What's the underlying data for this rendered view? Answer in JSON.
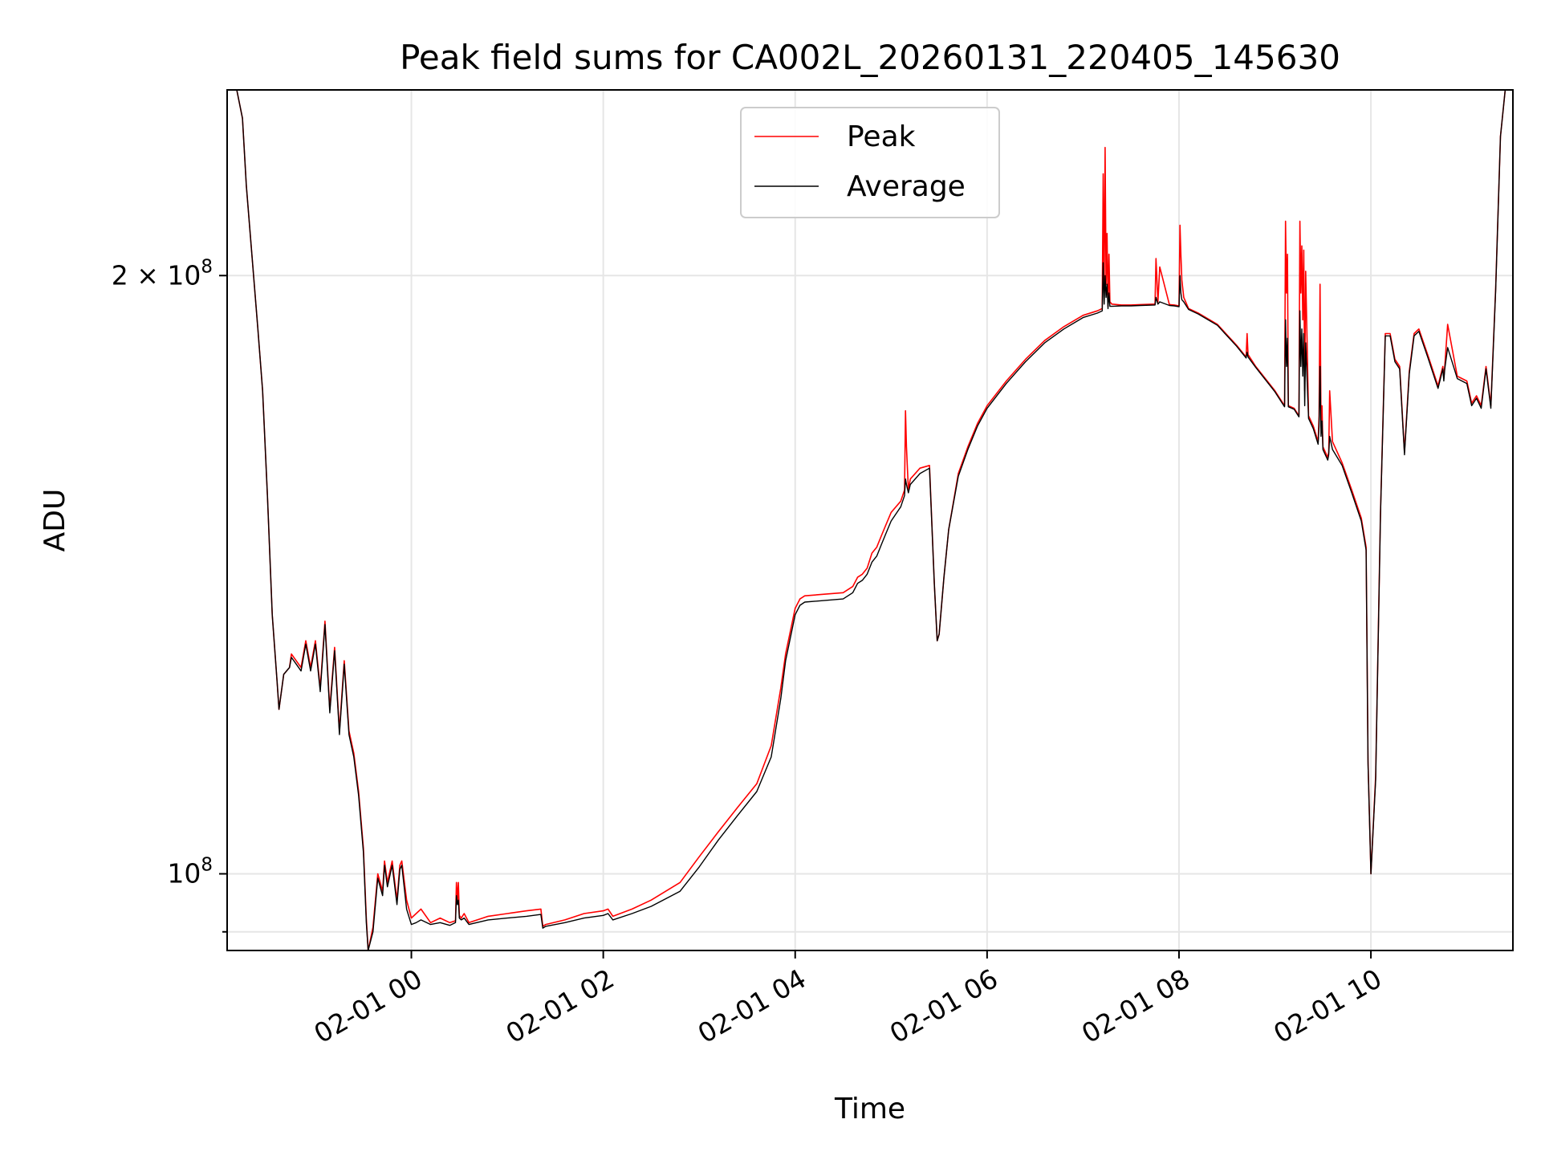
{
  "chart_data": {
    "type": "line",
    "title": "Peak field sums for CA002L_20260131_220405_145630",
    "xlabel": "Time",
    "ylabel": "ADU",
    "x_unit": "hours since 2026-02-01 00:00",
    "xlim": [
      -1.92,
      11.48
    ],
    "yscale": "log",
    "ylim": [
      91500000,
      248000000
    ],
    "xticks": [
      {
        "value": 0,
        "label": "02-01 00"
      },
      {
        "value": 2,
        "label": "02-01 02"
      },
      {
        "value": 4,
        "label": "02-01 04"
      },
      {
        "value": 6,
        "label": "02-01 06"
      },
      {
        "value": 8,
        "label": "02-01 08"
      },
      {
        "value": 10,
        "label": "02-01 10"
      }
    ],
    "yticks_major": [
      {
        "value": 100000000,
        "base": "10",
        "exp": "8",
        "mult": ""
      },
      {
        "value": 200000000,
        "base": "10",
        "exp": "8",
        "mult": "2 × "
      }
    ],
    "yticks_minor": [
      93500000
    ],
    "grid": true,
    "legend_position": "top-center",
    "colors": {
      "peak": "#ff0000",
      "average": "#000000"
    },
    "series": [
      {
        "name": "Peak",
        "color": "#ff0000",
        "x": [
          -1.92,
          -1.82,
          -1.76,
          -1.72,
          -1.6,
          -1.55,
          -1.5,
          -1.45,
          -1.4,
          -1.38,
          -1.33,
          -1.27,
          -1.25,
          -1.2,
          -1.15,
          -1.1,
          -1.05,
          -1.0,
          -0.95,
          -0.9,
          -0.85,
          -0.8,
          -0.75,
          -0.7,
          -0.65,
          -0.6,
          -0.55,
          -0.5,
          -0.47,
          -0.45,
          -0.4,
          -0.35,
          -0.3,
          -0.28,
          -0.25,
          -0.2,
          -0.15,
          -0.12,
          -0.1,
          -0.05,
          0.0,
          0.05,
          0.1,
          0.2,
          0.3,
          0.4,
          0.46,
          0.47,
          0.48,
          0.49,
          0.5,
          0.52,
          0.55,
          0.6,
          0.8,
          1.0,
          1.2,
          1.35,
          1.37,
          1.4,
          1.6,
          1.8,
          2.0,
          2.05,
          2.1,
          2.3,
          2.5,
          2.8,
          3.0,
          3.2,
          3.4,
          3.6,
          3.75,
          3.85,
          3.9,
          4.0,
          4.05,
          4.1,
          4.5,
          4.6,
          4.65,
          4.7,
          4.75,
          4.8,
          4.85,
          4.9,
          4.95,
          5.0,
          5.1,
          5.14,
          5.15,
          5.16,
          5.18,
          5.2,
          5.3,
          5.4,
          5.45,
          5.48,
          5.5,
          5.55,
          5.6,
          5.7,
          5.8,
          5.9,
          6.0,
          6.2,
          6.4,
          6.6,
          6.8,
          7.0,
          7.15,
          7.2,
          7.21,
          7.22,
          7.23,
          7.24,
          7.25,
          7.26,
          7.27,
          7.28,
          7.3,
          7.4,
          7.5,
          7.6,
          7.75,
          7.76,
          7.78,
          7.8,
          7.9,
          7.95,
          8.0,
          8.01,
          8.02,
          8.03,
          8.05,
          8.1,
          8.2,
          8.4,
          8.6,
          8.7,
          8.71,
          8.72,
          8.8,
          9.0,
          9.1,
          9.11,
          9.12,
          9.13,
          9.14,
          9.2,
          9.25,
          9.26,
          9.27,
          9.28,
          9.29,
          9.3,
          9.31,
          9.32,
          9.35,
          9.4,
          9.45,
          9.46,
          9.47,
          9.48,
          9.49,
          9.5,
          9.55,
          9.56,
          9.57,
          9.6,
          9.7,
          9.8,
          9.9,
          9.95,
          9.97,
          10.0,
          10.05,
          10.1,
          10.15,
          10.2,
          10.25,
          10.3,
          10.35,
          10.4,
          10.45,
          10.5,
          10.6,
          10.7,
          10.75,
          10.76,
          10.77,
          10.8,
          10.9,
          11.0,
          11.05,
          11.1,
          11.15,
          11.2,
          11.25,
          11.3,
          11.35,
          11.4,
          11.48
        ],
        "y": [
          248000000,
          248000000,
          240000000,
          222000000,
          188000000,
          175000000,
          155000000,
          135000000,
          125000000,
          121000000,
          126000000,
          127000000,
          129000000,
          128000000,
          127000000,
          131000000,
          127000000,
          131000000,
          124000000,
          134000000,
          121000000,
          130000000,
          118000000,
          128000000,
          118000000,
          115000000,
          110000000,
          103000000,
          95000000,
          91500000,
          94000000,
          100000000,
          98000000,
          101500000,
          99000000,
          101500000,
          97000000,
          101000000,
          101500000,
          97000000,
          95000000,
          95500000,
          96000000,
          94500000,
          95000000,
          94500000,
          94700000,
          99000000,
          97000000,
          99000000,
          95300000,
          95000000,
          95500000,
          94500000,
          95200000,
          95500000,
          95800000,
          96000000,
          94100000,
          94300000,
          94800000,
          95500000,
          95800000,
          96000000,
          95200000,
          96000000,
          97000000,
          99000000,
          102000000,
          105000000,
          108000000,
          111000000,
          116000000,
          124000000,
          129000000,
          136000000,
          137500000,
          138000000,
          138500000,
          139500000,
          141000000,
          141500000,
          142500000,
          145000000,
          146000000,
          148000000,
          150000000,
          152000000,
          154000000,
          156000000,
          171000000,
          164000000,
          156000000,
          158000000,
          160000000,
          160500000,
          140000000,
          131000000,
          132000000,
          141000000,
          149000000,
          159000000,
          164000000,
          168500000,
          172000000,
          177000000,
          181500000,
          185500000,
          188500000,
          191000000,
          192000000,
          192500000,
          225000000,
          196000000,
          232000000,
          198000000,
          210000000,
          193000000,
          205000000,
          194000000,
          193500000,
          193300000,
          193300000,
          193400000,
          193500000,
          204000000,
          194000000,
          202000000,
          193400000,
          193300000,
          193100000,
          212000000,
          205000000,
          199000000,
          195000000,
          192500000,
          191500000,
          189000000,
          184500000,
          182000000,
          187000000,
          182500000,
          180000000,
          175000000,
          172000000,
          213000000,
          196000000,
          205000000,
          172000000,
          171500000,
          170000000,
          213000000,
          196000000,
          207000000,
          190000000,
          206000000,
          175000000,
          201000000,
          170000000,
          168000000,
          165000000,
          170000000,
          198000000,
          168000000,
          172000000,
          164000000,
          162000000,
          163000000,
          175000000,
          165000000,
          161000000,
          156000000,
          151000000,
          146000000,
          114000000,
          100000000,
          112000000,
          152000000,
          187000000,
          187000000,
          181500000,
          180000000,
          163000000,
          179000000,
          187000000,
          188000000,
          182000000,
          176000000,
          180000000,
          177500000,
          180000000,
          189000000,
          178000000,
          177000000,
          172500000,
          174000000,
          172000000,
          180000000,
          172000000,
          197000000,
          235000000,
          248000000,
          248000000
        ]
      },
      {
        "name": "Average",
        "color": "#000000",
        "x": [
          -1.92,
          -1.82,
          -1.76,
          -1.72,
          -1.6,
          -1.55,
          -1.5,
          -1.45,
          -1.4,
          -1.38,
          -1.33,
          -1.27,
          -1.25,
          -1.2,
          -1.15,
          -1.1,
          -1.05,
          -1.0,
          -0.95,
          -0.9,
          -0.85,
          -0.8,
          -0.75,
          -0.7,
          -0.65,
          -0.6,
          -0.55,
          -0.5,
          -0.47,
          -0.45,
          -0.4,
          -0.35,
          -0.3,
          -0.28,
          -0.25,
          -0.2,
          -0.15,
          -0.12,
          -0.1,
          -0.05,
          0.0,
          0.05,
          0.1,
          0.2,
          0.3,
          0.4,
          0.46,
          0.47,
          0.48,
          0.49,
          0.5,
          0.52,
          0.55,
          0.6,
          0.8,
          1.0,
          1.2,
          1.35,
          1.37,
          1.4,
          1.6,
          1.8,
          2.0,
          2.05,
          2.1,
          2.3,
          2.5,
          2.8,
          3.0,
          3.2,
          3.4,
          3.6,
          3.75,
          3.85,
          3.9,
          4.0,
          4.05,
          4.1,
          4.5,
          4.6,
          4.65,
          4.7,
          4.75,
          4.8,
          4.85,
          4.9,
          4.95,
          5.0,
          5.1,
          5.14,
          5.15,
          5.16,
          5.18,
          5.2,
          5.3,
          5.4,
          5.45,
          5.48,
          5.5,
          5.55,
          5.6,
          5.7,
          5.8,
          5.9,
          6.0,
          6.2,
          6.4,
          6.6,
          6.8,
          7.0,
          7.15,
          7.2,
          7.21,
          7.22,
          7.23,
          7.24,
          7.25,
          7.26,
          7.27,
          7.28,
          7.3,
          7.4,
          7.5,
          7.6,
          7.75,
          7.76,
          7.78,
          7.8,
          7.9,
          7.95,
          8.0,
          8.01,
          8.02,
          8.03,
          8.05,
          8.1,
          8.2,
          8.4,
          8.6,
          8.7,
          8.71,
          8.72,
          8.8,
          9.0,
          9.1,
          9.11,
          9.12,
          9.13,
          9.14,
          9.2,
          9.25,
          9.26,
          9.27,
          9.28,
          9.29,
          9.3,
          9.31,
          9.32,
          9.35,
          9.4,
          9.45,
          9.46,
          9.47,
          9.48,
          9.49,
          9.5,
          9.55,
          9.56,
          9.57,
          9.6,
          9.7,
          9.8,
          9.9,
          9.95,
          9.97,
          10.0,
          10.05,
          10.1,
          10.15,
          10.2,
          10.25,
          10.3,
          10.35,
          10.4,
          10.45,
          10.5,
          10.6,
          10.7,
          10.75,
          10.76,
          10.77,
          10.8,
          10.9,
          11.0,
          11.05,
          11.1,
          11.15,
          11.2,
          11.25,
          11.3,
          11.35,
          11.4,
          11.48
        ],
        "y": [
          248000000,
          248000000,
          240000000,
          222000000,
          188000000,
          175000000,
          155000000,
          135000000,
          125000000,
          121000000,
          126000000,
          127000000,
          128500000,
          127500000,
          126500000,
          130500000,
          126500000,
          130500000,
          123500000,
          133500000,
          120500000,
          129500000,
          117500000,
          127500000,
          117500000,
          114500000,
          109500000,
          102500000,
          94500000,
          91500000,
          93500000,
          99500000,
          97500000,
          101000000,
          98500000,
          101000000,
          96500000,
          100500000,
          101000000,
          96000000,
          94300000,
          94500000,
          94800000,
          94300000,
          94500000,
          94200000,
          94500000,
          97500000,
          96500000,
          97000000,
          95000000,
          94800000,
          95000000,
          94300000,
          94800000,
          95000000,
          95200000,
          95400000,
          93900000,
          94100000,
          94500000,
          95000000,
          95300000,
          95500000,
          94800000,
          95500000,
          96300000,
          98000000,
          100800000,
          104000000,
          107000000,
          110000000,
          114500000,
          122500000,
          128000000,
          135000000,
          136500000,
          137000000,
          137500000,
          138500000,
          140000000,
          140500000,
          141500000,
          143500000,
          144500000,
          146500000,
          148500000,
          150500000,
          153000000,
          155000000,
          158000000,
          157000000,
          155500000,
          157000000,
          159000000,
          160000000,
          140000000,
          131000000,
          132000000,
          141000000,
          149000000,
          158500000,
          163500000,
          168000000,
          171500000,
          176500000,
          181000000,
          185000000,
          188000000,
          190500000,
          191500000,
          192000000,
          203000000,
          193500000,
          200000000,
          195000000,
          198000000,
          192500000,
          196000000,
          193000000,
          193000000,
          193100000,
          193100000,
          193200000,
          193300000,
          195000000,
          193500000,
          194000000,
          193200000,
          193100000,
          192900000,
          200000000,
          196000000,
          194500000,
          194000000,
          192300000,
          191300000,
          188800000,
          184300000,
          181800000,
          183000000,
          182000000,
          179800000,
          174800000,
          171800000,
          190000000,
          180000000,
          186000000,
          171800000,
          171300000,
          169800000,
          192000000,
          180000000,
          188000000,
          178000000,
          187000000,
          172000000,
          185000000,
          169500000,
          167500000,
          164500000,
          168000000,
          180000000,
          166000000,
          169000000,
          163500000,
          161500000,
          162500000,
          166000000,
          163500000,
          160500000,
          155500000,
          150500000,
          145500000,
          113500000,
          100000000,
          111500000,
          151500000,
          186500000,
          186500000,
          181000000,
          179500000,
          162500000,
          178500000,
          186500000,
          187500000,
          181500000,
          175500000,
          179500000,
          177000000,
          179500000,
          184000000,
          177500000,
          176500000,
          172000000,
          173500000,
          171500000,
          179500000,
          171500000,
          196500000,
          235000000,
          248000000,
          248000000
        ]
      }
    ]
  }
}
